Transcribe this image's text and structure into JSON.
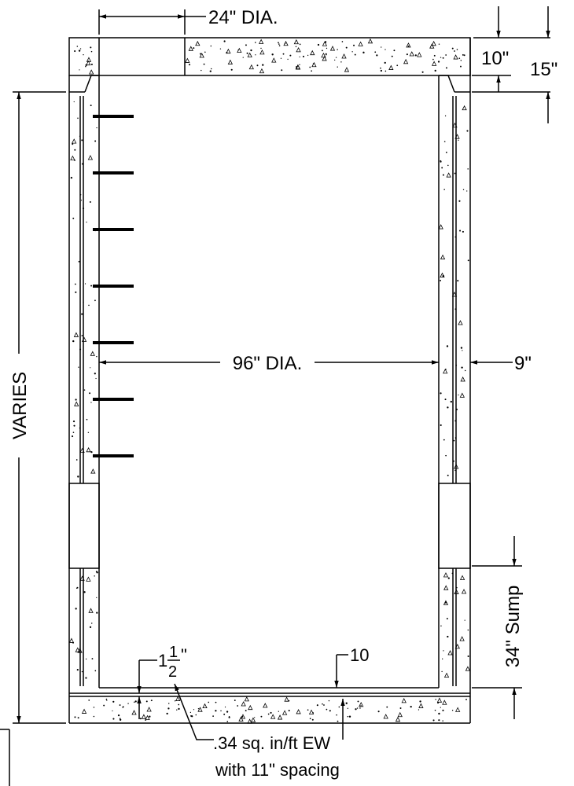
{
  "labels": {
    "opening_dia": "24\" DIA.",
    "top_slab_thickness": "10\"",
    "top_offset": "15\"",
    "inside_dia": "96\" DIA.",
    "wall_thickness": "9\"",
    "height": "VARIES",
    "sump": "34\" Sump",
    "cover_whole": "1",
    "cover_num": "1",
    "cover_den": "2",
    "cover_unit": "\"",
    "base_callout": "10",
    "reinforcement_line1": ".34 sq. in/ft EW",
    "reinforcement_line2": "with 11\" spacing"
  },
  "colors": {
    "line": "#000000",
    "concrete_fill": "#ffffff",
    "background": "#ffffff"
  },
  "components": {
    "ladder_rungs": 7,
    "slab_stipple_dots": 130,
    "wall_stipple_dots": 120
  }
}
